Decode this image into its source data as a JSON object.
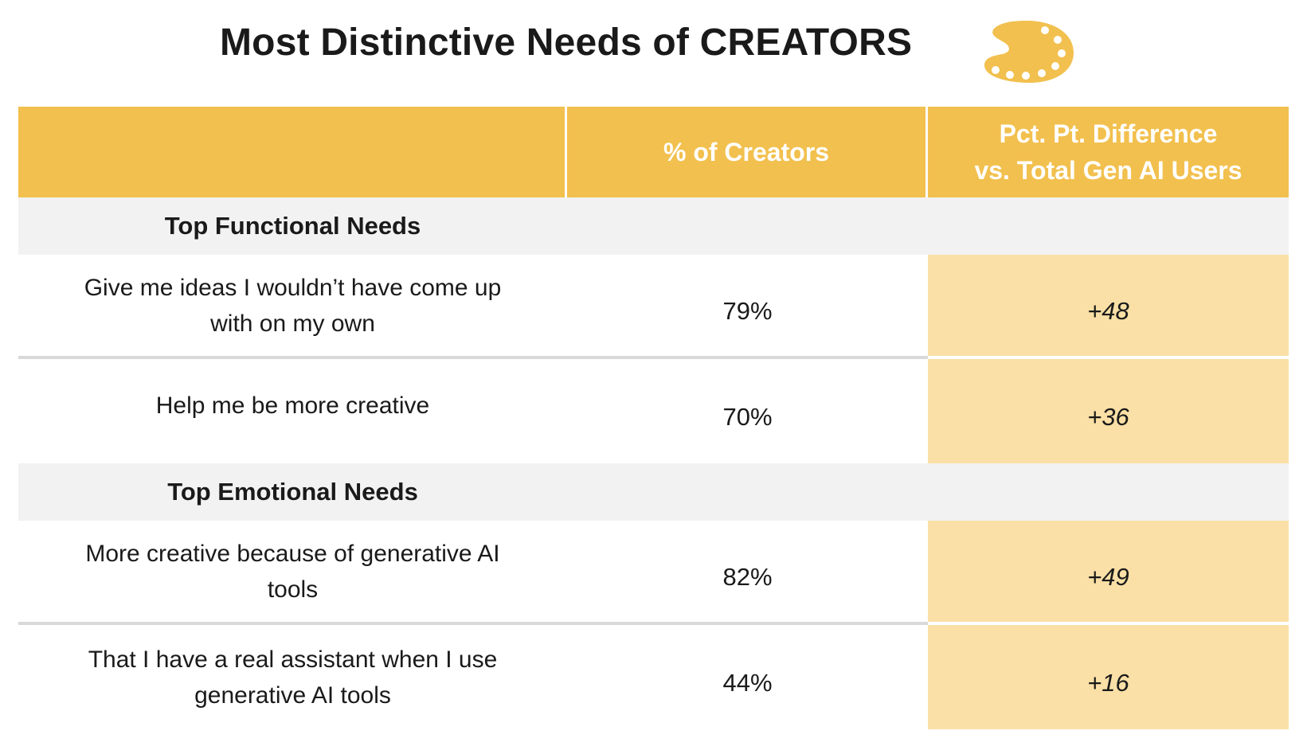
{
  "title": "Most Distinctive Needs of CREATORS",
  "icon": "palette-icon",
  "colors": {
    "header_bg": "#f2c04e",
    "highlight_bg": "#fae0a6",
    "section_bg": "#f2f2f3"
  },
  "chart_data": {
    "type": "table",
    "title": "Most Distinctive Needs of CREATORS",
    "columns": [
      "",
      "% of Creators",
      "Pct. Pt. Difference vs. Total Gen AI Users"
    ],
    "sections": [
      {
        "name": "Top Functional Needs",
        "rows": [
          {
            "need": "Give me ideas I wouldn’t have come up with on my own",
            "pct": "79%",
            "diff": "+48"
          },
          {
            "need": "Help me be more creative",
            "pct": "70%",
            "diff": "+36"
          }
        ]
      },
      {
        "name": "Top Emotional Needs",
        "rows": [
          {
            "need": "More creative because of generative AI tools",
            "pct": "82%",
            "diff": "+49"
          },
          {
            "need": "That I have a real assistant when I use generative AI tools",
            "pct": "44%",
            "diff": "+16"
          }
        ]
      }
    ]
  },
  "header": {
    "col1": "",
    "col2": "% of Creators",
    "col3_line1": "Pct. Pt. Difference",
    "col3_line2": "vs. Total Gen AI Users"
  }
}
